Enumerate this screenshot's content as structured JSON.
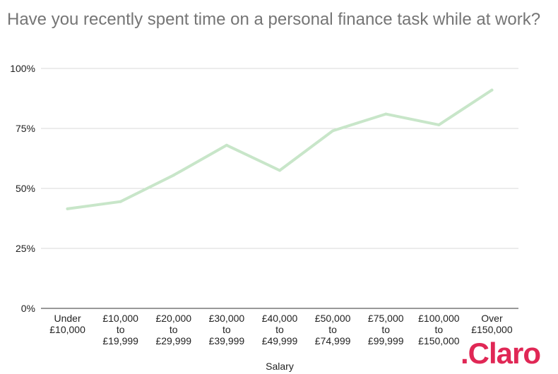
{
  "chart_data": {
    "type": "line",
    "title": "Have you recently spent time on a personal finance task while at work?",
    "xlabel": "Salary",
    "ylabel": "",
    "categories": [
      [
        "Under",
        "£10,000"
      ],
      [
        "£10,000",
        "to",
        "£19,999"
      ],
      [
        "£20,000",
        "to",
        "£29,999"
      ],
      [
        "£30,000",
        "to",
        "£39,999"
      ],
      [
        "£40,000",
        "to",
        "£49,999"
      ],
      [
        "£50,000",
        "to",
        "£74,999"
      ],
      [
        "£75,000",
        "to",
        "£99,999"
      ],
      [
        "£100,000",
        "to",
        "£150,000"
      ],
      [
        "Over",
        "£150,000"
      ]
    ],
    "series": [
      {
        "values": [
          41.5,
          44.5,
          55.5,
          68,
          57.5,
          74,
          81,
          76.5,
          91
        ]
      }
    ],
    "ylim": [
      0,
      100
    ],
    "yticks": [
      "0%",
      "25%",
      "50%",
      "75%",
      "100%"
    ],
    "grid": true,
    "legend": "none"
  },
  "logo": {
    "text": ".Claro",
    "color": "#e02755"
  },
  "colors": {
    "series_line": "#c8e6c9",
    "grid": "#d9d9d9",
    "axis_text": "#222222",
    "title": "#757575"
  }
}
